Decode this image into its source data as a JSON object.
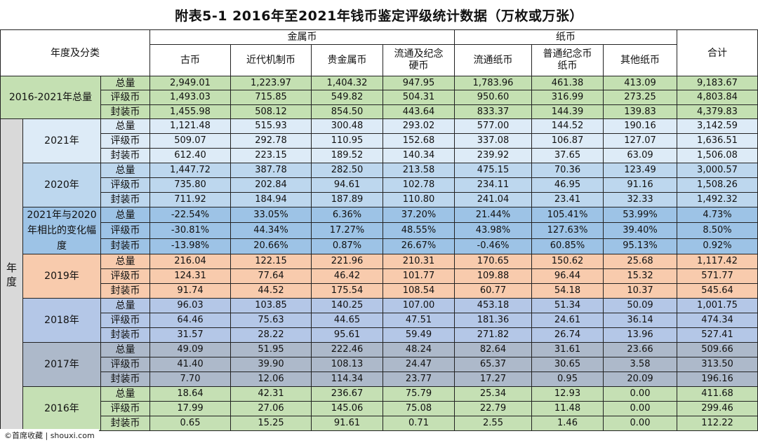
{
  "title": "附表5-1  2016年至2021年钱币鉴定评级统计数据（万枚或万张）",
  "header": {
    "category_label": "年度及分类",
    "group_metal": "金属币",
    "group_paper": "纸币",
    "total": "合计",
    "columns": [
      "古币",
      "近代机制币",
      "贵金属币",
      "流通及纪念\n硬币",
      "流通纸币",
      "普通纪念币\n纸币",
      "其他纸币"
    ]
  },
  "year_axis_label": "年度",
  "sub_labels": [
    "总量",
    "评级币",
    "封装币"
  ],
  "blocks": [
    {
      "label": "2016-2021年总量",
      "rows": [
        [
          "2,949.01",
          "1,223.97",
          "1,404.32",
          "947.95",
          "1,783.96",
          "461.38",
          "413.09",
          "9,183.67"
        ],
        [
          "1,493.03",
          "715.85",
          "549.82",
          "504.31",
          "950.60",
          "316.99",
          "273.25",
          "4,803.84"
        ],
        [
          "1,455.98",
          "508.12",
          "854.50",
          "443.64",
          "833.37",
          "144.39",
          "139.83",
          "4,379.83"
        ]
      ]
    },
    {
      "label": "2021年",
      "rows": [
        [
          "1,121.48",
          "515.93",
          "300.48",
          "293.02",
          "577.00",
          "144.52",
          "190.16",
          "3,142.59"
        ],
        [
          "509.07",
          "292.78",
          "110.95",
          "152.68",
          "337.08",
          "106.87",
          "127.07",
          "1,636.51"
        ],
        [
          "612.40",
          "223.15",
          "189.52",
          "140.34",
          "239.92",
          "37.65",
          "63.09",
          "1,506.08"
        ]
      ]
    },
    {
      "label": "2020年",
      "rows": [
        [
          "1,447.72",
          "387.78",
          "282.50",
          "213.58",
          "475.15",
          "70.36",
          "123.49",
          "3,000.57"
        ],
        [
          "735.80",
          "202.84",
          "94.61",
          "102.78",
          "234.11",
          "46.95",
          "91.16",
          "1,508.26"
        ],
        [
          "711.92",
          "184.94",
          "187.89",
          "110.80",
          "241.04",
          "23.41",
          "32.33",
          "1,492.32"
        ]
      ]
    },
    {
      "label": "2021年与2020年相比的变化幅度",
      "rows": [
        [
          "-22.54%",
          "33.05%",
          "6.36%",
          "37.20%",
          "21.44%",
          "105.41%",
          "53.99%",
          "4.73%"
        ],
        [
          "-30.81%",
          "44.34%",
          "17.27%",
          "48.55%",
          "43.98%",
          "127.63%",
          "39.40%",
          "8.50%"
        ],
        [
          "-13.98%",
          "20.66%",
          "0.87%",
          "26.67%",
          "-0.46%",
          "60.85%",
          "95.13%",
          "0.92%"
        ]
      ]
    },
    {
      "label": "2019年",
      "rows": [
        [
          "216.04",
          "122.15",
          "221.96",
          "210.31",
          "170.65",
          "150.62",
          "25.68",
          "1,117.42"
        ],
        [
          "124.31",
          "77.64",
          "46.42",
          "101.77",
          "109.88",
          "96.44",
          "15.32",
          "571.77"
        ],
        [
          "91.74",
          "44.52",
          "175.54",
          "108.54",
          "60.77",
          "54.18",
          "10.37",
          "545.64"
        ]
      ]
    },
    {
      "label": "2018年",
      "rows": [
        [
          "96.03",
          "103.85",
          "140.25",
          "107.00",
          "453.18",
          "51.34",
          "50.09",
          "1,001.75"
        ],
        [
          "64.46",
          "75.63",
          "44.65",
          "47.51",
          "181.36",
          "24.61",
          "36.14",
          "474.34"
        ],
        [
          "31.57",
          "28.22",
          "95.61",
          "59.49",
          "271.82",
          "26.74",
          "13.96",
          "527.41"
        ]
      ]
    },
    {
      "label": "2017年",
      "rows": [
        [
          "49.09",
          "51.95",
          "222.46",
          "48.24",
          "82.64",
          "31.61",
          "23.66",
          "509.66"
        ],
        [
          "41.40",
          "39.90",
          "108.13",
          "24.47",
          "65.37",
          "30.65",
          "3.58",
          "313.50"
        ],
        [
          "7.70",
          "12.06",
          "114.34",
          "23.77",
          "17.27",
          "0.95",
          "20.09",
          "196.16"
        ]
      ]
    },
    {
      "label": "2016年",
      "rows": [
        [
          "18.64",
          "42.31",
          "236.67",
          "75.79",
          "25.34",
          "12.93",
          "0.00",
          "411.68"
        ],
        [
          "17.99",
          "27.06",
          "145.06",
          "75.08",
          "22.79",
          "11.48",
          "0.00",
          "299.46"
        ],
        [
          "0.65",
          "15.25",
          "91.61",
          "0.71",
          "2.55",
          "1.46",
          "0.00",
          "112.22"
        ]
      ]
    }
  ],
  "watermark": "©首席收藏 | shouxi.com",
  "colors": {
    "total": "#c4e0b2",
    "y2021": "#ddebf7",
    "y2020": "#bdd7ee",
    "change": "#9dc3e6",
    "y2019": "#f8cbad",
    "y2018": "#b4c7e7",
    "y2017": "#adb9ca",
    "y2016": "#c5e0b4"
  }
}
